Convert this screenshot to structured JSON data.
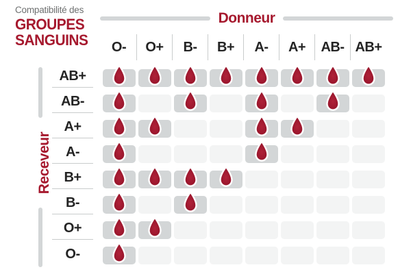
{
  "header": {
    "subtitle": "Compatibilité des",
    "title_line1": "GROUPES",
    "title_line2": "SANGUINS"
  },
  "chart_data": {
    "type": "heatmap",
    "title": "Compatibilité des groupes sanguins",
    "x_axis": {
      "label": "Donneur",
      "categories": [
        "O-",
        "O+",
        "B-",
        "B+",
        "A-",
        "A+",
        "AB-",
        "AB+"
      ]
    },
    "y_axis": {
      "label": "Receveur",
      "categories": [
        "AB+",
        "AB-",
        "A+",
        "A-",
        "B+",
        "B-",
        "O+",
        "O-"
      ]
    },
    "matrix": [
      [
        1,
        1,
        1,
        1,
        1,
        1,
        1,
        1
      ],
      [
        1,
        0,
        1,
        0,
        1,
        0,
        1,
        0
      ],
      [
        1,
        1,
        0,
        0,
        1,
        1,
        0,
        0
      ],
      [
        1,
        0,
        0,
        0,
        1,
        0,
        0,
        0
      ],
      [
        1,
        1,
        1,
        1,
        0,
        0,
        0,
        0
      ],
      [
        1,
        0,
        1,
        0,
        0,
        0,
        0,
        0
      ],
      [
        1,
        1,
        0,
        0,
        0,
        0,
        0,
        0
      ],
      [
        1,
        0,
        0,
        0,
        0,
        0,
        0,
        0
      ]
    ],
    "encoding": "1 = compatible (red blood-drop on grey cell), 0 = incompatible (empty light cell)",
    "legend_position": "none",
    "grid": "off"
  },
  "icons": {
    "compatible_marker": "blood-drop-icon"
  },
  "colors": {
    "accent_red": "#A6192E",
    "drop_fill": "#A51C33",
    "drop_fill_dark": "#8E1026",
    "drop_outline": "#FFFFFF",
    "active_cell": "#D3D6D7",
    "inactive_cell": "#F3F4F4",
    "axis_rule": "#D3D6D7",
    "separator": "#C9CCCC",
    "text_dark": "#242424",
    "text_gray": "#6E7070",
    "background": "#FFFFFF"
  }
}
